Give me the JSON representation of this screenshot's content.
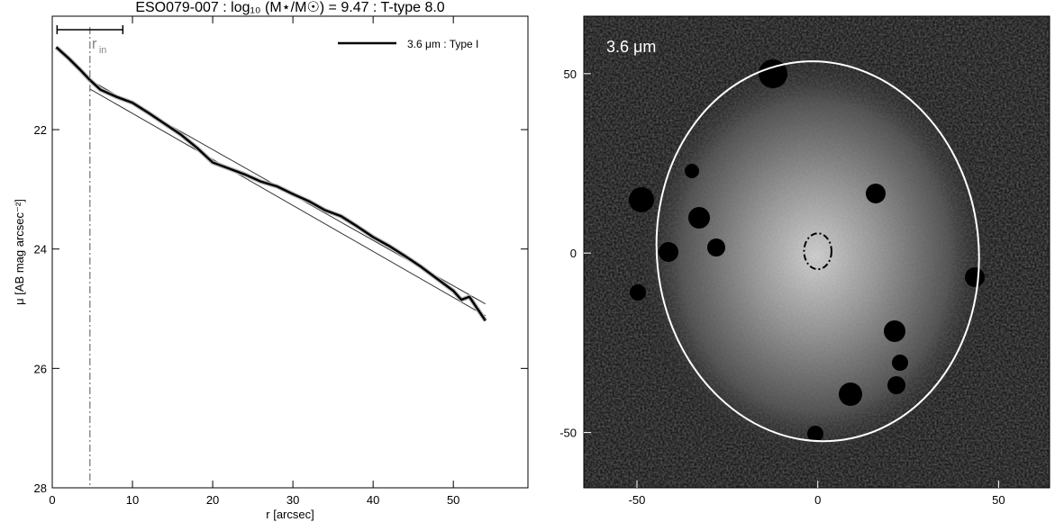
{
  "chart_data": [
    {
      "type": "line",
      "title": "ESO079-007 : log₁₀ (M⋆/M☉) = 9.47 : T-type 8.0",
      "x_label": "r [arcsec]",
      "y_label": "μ [AB mag arcsec⁻²]",
      "xlim": [
        0,
        59.3
      ],
      "ylim": [
        28,
        20.1
      ],
      "xticks": [
        0,
        10,
        20,
        30,
        40,
        50
      ],
      "yticks": [
        22,
        24,
        26,
        28
      ],
      "series": [
        {
          "name": "3.6 μm : Type I",
          "color": "#000000",
          "x": [
            0.5,
            2,
            3.5,
            4.7,
            6,
            8,
            10,
            12,
            14,
            16,
            18,
            20,
            22,
            24,
            26,
            28,
            30,
            32,
            34,
            36,
            38,
            40,
            42,
            44,
            46,
            48,
            50,
            51,
            52,
            53,
            54
          ],
          "values": [
            20.62,
            20.8,
            21.0,
            21.17,
            21.33,
            21.45,
            21.55,
            21.72,
            21.9,
            22.08,
            22.3,
            22.55,
            22.65,
            22.75,
            22.87,
            22.95,
            23.08,
            23.2,
            23.35,
            23.45,
            23.62,
            23.8,
            23.95,
            24.12,
            24.3,
            24.5,
            24.7,
            24.85,
            24.8,
            25.0,
            25.2
          ]
        }
      ],
      "fit_lines": [
        {
          "x": [
            4.7,
            54
          ],
          "values": [
            21.17,
            24.92
          ]
        },
        {
          "x": [
            4.7,
            54
          ],
          "values": [
            21.32,
            25.12
          ]
        }
      ],
      "r_in": {
        "value": 4.7,
        "label": "r",
        "sub": "in",
        "range": [
          0.6,
          8.8
        ]
      }
    },
    {
      "type": "image",
      "label": "3.6 μm",
      "xlim": [
        -64.7,
        64.1
      ],
      "ylim": [
        -65.4,
        66
      ],
      "xticks": [
        -50,
        0,
        50
      ],
      "yticks": [
        -50,
        0,
        50
      ],
      "ellipses": [
        {
          "cx": 0,
          "cy": 0.5,
          "rx": 44.5,
          "ry": 53,
          "angle": -6,
          "color": "#ffffff",
          "style": "solid"
        },
        {
          "cx": 0,
          "cy": 0.5,
          "rx": 3.8,
          "ry": 5,
          "angle": 0,
          "color": "#000000",
          "style": "dashdot"
        }
      ]
    }
  ]
}
